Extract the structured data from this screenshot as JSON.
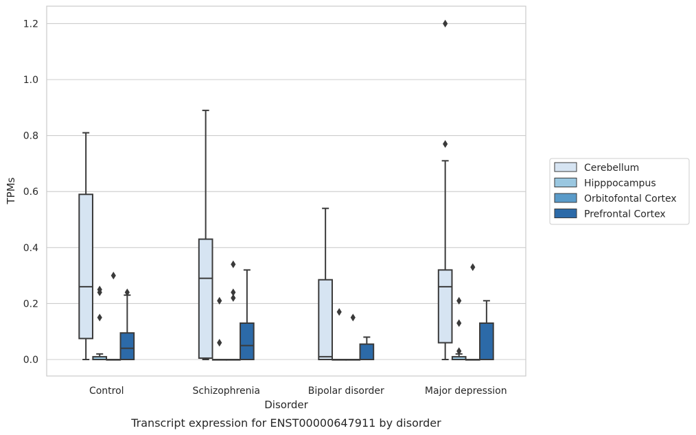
{
  "chart_data": {
    "type": "box",
    "title": "",
    "caption": "Transcript expression for ENST00000647911 by disorder",
    "xlabel": "Disorder",
    "ylabel": "TPMs",
    "ylim": [
      -0.06,
      1.26
    ],
    "yticks": [
      0.0,
      0.2,
      0.4,
      0.6,
      0.8,
      1.0,
      1.2
    ],
    "ytick_labels": [
      "0.0",
      "0.2",
      "0.4",
      "0.6",
      "0.8",
      "1.0",
      "1.2"
    ],
    "grid": "horizontal",
    "legend_position": "right",
    "categories": [
      "Control",
      "Schizophrenia",
      "Bipolar disorder",
      "Major depression"
    ],
    "series": [
      {
        "name": "Cerebellum",
        "color": "#d6e4f2",
        "boxes": [
          {
            "whislo": 0.0,
            "q1": 0.075,
            "med": 0.26,
            "q3": 0.59,
            "whishi": 0.81,
            "fliers": []
          },
          {
            "whislo": 0.0,
            "q1": 0.005,
            "med": 0.29,
            "q3": 0.43,
            "whishi": 0.89,
            "fliers": []
          },
          {
            "whislo": 0.0,
            "q1": 0.0,
            "med": 0.01,
            "q3": 0.285,
            "whishi": 0.54,
            "fliers": []
          },
          {
            "whislo": 0.0,
            "q1": 0.06,
            "med": 0.26,
            "q3": 0.32,
            "whishi": 0.71,
            "fliers": [
              0.77,
              1.2
            ]
          }
        ]
      },
      {
        "name": "Hipppocampus",
        "color": "#9ac7e0",
        "boxes": [
          {
            "whislo": 0.0,
            "q1": 0.0,
            "med": 0.0,
            "q3": 0.01,
            "whishi": 0.02,
            "fliers": [
              0.15,
              0.24,
              0.25
            ]
          },
          {
            "whislo": 0.0,
            "q1": 0.0,
            "med": 0.0,
            "q3": 0.0,
            "whishi": 0.0,
            "fliers": [
              0.06,
              0.21
            ]
          },
          {
            "whislo": 0.0,
            "q1": 0.0,
            "med": 0.0,
            "q3": 0.0,
            "whishi": 0.0,
            "fliers": [
              0.17
            ]
          },
          {
            "whislo": 0.0,
            "q1": 0.0,
            "med": 0.0,
            "q3": 0.01,
            "whishi": 0.02,
            "fliers": [
              0.03,
              0.13,
              0.21
            ]
          }
        ]
      },
      {
        "name": "Orbitofontal Cortex",
        "color": "#5a9bc9",
        "boxes": [
          {
            "whislo": 0.0,
            "q1": 0.0,
            "med": 0.0,
            "q3": 0.0,
            "whishi": 0.0,
            "fliers": [
              0.3
            ]
          },
          {
            "whislo": 0.0,
            "q1": 0.0,
            "med": 0.0,
            "q3": 0.0,
            "whishi": 0.0,
            "fliers": [
              0.22,
              0.24,
              0.34
            ]
          },
          {
            "whislo": 0.0,
            "q1": 0.0,
            "med": 0.0,
            "q3": 0.0,
            "whishi": 0.0,
            "fliers": [
              0.15
            ]
          },
          {
            "whislo": 0.0,
            "q1": 0.0,
            "med": 0.0,
            "q3": 0.0,
            "whishi": 0.0,
            "fliers": [
              0.33
            ]
          }
        ]
      },
      {
        "name": "Prefrontal Cortex",
        "color": "#2c6aa8",
        "boxes": [
          {
            "whislo": 0.0,
            "q1": 0.0,
            "med": 0.04,
            "q3": 0.095,
            "whishi": 0.23,
            "fliers": [
              0.24
            ]
          },
          {
            "whislo": 0.0,
            "q1": 0.0,
            "med": 0.05,
            "q3": 0.13,
            "whishi": 0.32,
            "fliers": []
          },
          {
            "whislo": 0.0,
            "q1": 0.0,
            "med": 0.0,
            "q3": 0.055,
            "whishi": 0.08,
            "fliers": []
          },
          {
            "whislo": 0.0,
            "q1": 0.0,
            "med": 0.0,
            "q3": 0.13,
            "whishi": 0.21,
            "fliers": []
          }
        ]
      }
    ]
  }
}
